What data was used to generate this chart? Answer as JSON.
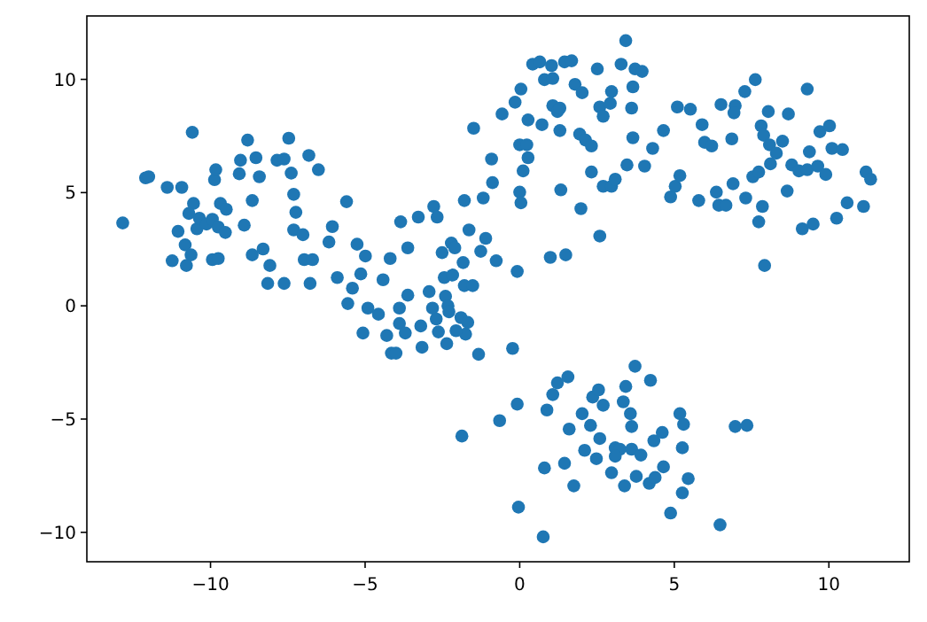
{
  "chart_data": {
    "type": "scatter",
    "color": "#1f77b4",
    "marker": "circle",
    "xlim": [
      -14.0,
      12.6
    ],
    "ylim": [
      -11.3,
      12.8
    ],
    "xticks": [
      {
        "value": -10,
        "label": "−10"
      },
      {
        "value": -5,
        "label": "−5"
      },
      0,
      5,
      10
    ],
    "yticks": [
      {
        "value": -10,
        "label": "−10"
      },
      {
        "value": -5,
        "label": "−5"
      },
      0,
      5,
      10
    ],
    "x": [
      -12.84,
      -12.1,
      -12.0,
      -11.4,
      -10.93,
      -10.59,
      -11.05,
      -11.24,
      -10.78,
      -10.82,
      -10.63,
      -10.55,
      -10.7,
      -10.44,
      -10.36,
      -10.13,
      -9.94,
      -9.87,
      -9.83,
      -9.68,
      -9.49,
      -9.75,
      -9.52,
      -9.94,
      -9.75,
      -9.07,
      -9.03,
      -8.8,
      -8.53,
      -8.42,
      -8.65,
      -8.91,
      -8.65,
      -8.3,
      -8.08,
      -8.15,
      -7.62,
      -7.85,
      -7.62,
      -7.47,
      -7.39,
      -7.31,
      -7.24,
      -7.31,
      -7.01,
      -6.97,
      -6.7,
      -6.78,
      -6.82,
      -6.51,
      -6.17,
      -6.06,
      -5.9,
      -5.6,
      -5.56,
      -5.41,
      -5.26,
      -5.14,
      -4.99,
      -4.91,
      -5.07,
      -4.57,
      -4.42,
      -4.3,
      -4.19,
      -4.15,
      -4.0,
      -3.89,
      -3.85,
      -3.89,
      -3.7,
      -3.62,
      -3.62,
      -3.28,
      -3.2,
      -3.16,
      -2.93,
      -2.82,
      -2.78,
      -2.67,
      -2.7,
      -2.63,
      -2.51,
      -2.44,
      -2.4,
      -2.32,
      -2.29,
      -2.36,
      -2.21,
      -2.17,
      -2.1,
      -1.9,
      -1.83,
      -1.79,
      -1.79,
      -1.75,
      -1.68,
      -2.06,
      -1.64,
      -1.52,
      -1.49,
      -1.33,
      -1.26,
      -1.1,
      -1.18,
      -0.91,
      -0.88,
      -0.76,
      -0.57,
      -0.65,
      -0.23,
      -0.15,
      -0.08,
      0.04,
      -0.08,
      -0.04,
      0,
      0.04,
      0,
      0.23,
      0.11,
      0.27,
      0.27,
      0.42,
      0.65,
      0.72,
      0.8,
      0.99,
      1.03,
      1.07,
      1.07,
      1.22,
      1.3,
      1.3,
      1.33,
      1.49,
      1.45,
      1.68,
      1.79,
      2.02,
      1.94,
      2.13,
      2.32,
      1.98,
      2.32,
      2.51,
      2.59,
      2.7,
      2.93,
      2.97,
      2.59,
      2.7,
      2.97,
      3.09,
      3.28,
      3.43,
      3.47,
      3.62,
      3.66,
      3.73,
      3.96,
      3.66,
      4.04,
      4.3,
      4.65,
      4.88,
      5.03,
      5.18,
      5.1,
      5.52,
      5.79,
      5.9,
      5.98,
      6.21,
      6.36,
      6.44,
      6.67,
      6.51,
      6.86,
      6.9,
      6.97,
      6.93,
      7.28,
      7.31,
      7.62,
      7.54,
      7.73,
      7.73,
      7.85,
      7.81,
      7.89,
      7.92,
      8.04,
      8.08,
      8.11,
      8.3,
      8.5,
      8.69,
      8.65,
      8.8,
      9.03,
      9.14,
      9.3,
      9.37,
      9.3,
      9.49,
      9.64,
      9.71,
      9.9,
      10.02,
      10.1,
      10.25,
      10.44,
      10.59,
      11.12,
      11.2,
      11.35,
      -1.87,
      0.8,
      0.76,
      0.88,
      1.07,
      1.22,
      1.56,
      1.45,
      1.6,
      1.75,
      2.02,
      2.1,
      2.29,
      2.36,
      2.48,
      2.55,
      2.59,
      2.7,
      2.97,
      3.09,
      3.24,
      3.43,
      3.39,
      3.58,
      3.62,
      3.73,
      3.62,
      3.77,
      3.92,
      4.19,
      4.23,
      4.34,
      4.38,
      4.61,
      4.65,
      4.88,
      5.18,
      5.3,
      5.26,
      5.26,
      5.45,
      6.48,
      6.97,
      7.35,
      3.35,
      3.09
    ],
    "values": [
      3.66,
      5.65,
      5.7,
      5.23,
      5.23,
      7.66,
      3.29,
      1.99,
      1.78,
      2.69,
      2.25,
      4.52,
      4.08,
      3.4,
      3.87,
      3.61,
      3.82,
      5.57,
      6.01,
      4.52,
      4.26,
      3.48,
      3.24,
      2.04,
      2.09,
      5.83,
      6.43,
      7.32,
      6.54,
      5.7,
      4.65,
      3.56,
      2.25,
      2.51,
      1.78,
      0.99,
      0.99,
      6.43,
      6.48,
      7.4,
      5.86,
      4.92,
      4.13,
      3.35,
      3.14,
      2.04,
      2.04,
      0.99,
      6.64,
      6.01,
      2.82,
      3.5,
      1.25,
      4.6,
      0.1,
      0.78,
      2.72,
      1.41,
      2.2,
      -0.1,
      -1.2,
      -0.37,
      1.15,
      -1.31,
      2.09,
      -2.09,
      -2.09,
      -0.1,
      3.71,
      -0.78,
      -1.2,
      2.56,
      0.47,
      3.92,
      -0.89,
      -1.83,
      0.63,
      -0.1,
      4.39,
      3.92,
      -0.58,
      -1.15,
      2.35,
      1.25,
      0.42,
      0.0,
      -0.26,
      -1.67,
      2.77,
      1.36,
      2.56,
      -0.52,
      1.91,
      4.65,
      0.89,
      -1.25,
      -0.73,
      -1.1,
      3.35,
      0.89,
      7.84,
      -2.14,
      2.41,
      2.98,
      4.76,
      6.48,
      5.44,
      1.99,
      8.47,
      -5.07,
      -1.88,
      8.99,
      1.52,
      9.57,
      -4.34,
      -8.89,
      5.02,
      4.55,
      7.11,
      7.11,
      5.96,
      6.54,
      8.21,
      10.67,
      10.77,
      8.0,
      9.99,
      2.14,
      10.61,
      10.04,
      8.84,
      8.58,
      8.73,
      7.74,
      5.12,
      2.25,
      10.77,
      10.82,
      9.78,
      9.41,
      7.58,
      7.32,
      7.06,
      4.29,
      5.91,
      10.46,
      8.78,
      8.37,
      8.94,
      9.46,
      3.08,
      5.28,
      5.28,
      5.59,
      10.67,
      11.71,
      6.22,
      8.73,
      9.67,
      10.46,
      10.35,
      7.42,
      6.17,
      6.95,
      7.74,
      4.81,
      5.28,
      5.75,
      8.78,
      8.68,
      4.65,
      8.0,
      7.22,
      7.06,
      5.02,
      4.44,
      4.44,
      8.89,
      7.37,
      5.39,
      8.84,
      8.52,
      9.46,
      4.76,
      9.99,
      5.7,
      5.91,
      3.71,
      4.39,
      7.95,
      7.53,
      1.78,
      8.58,
      7.11,
      6.27,
      6.74,
      7.27,
      8.47,
      5.07,
      6.22,
      5.96,
      3.4,
      9.57,
      6.8,
      6.01,
      3.61,
      6.17,
      7.69,
      5.8,
      7.95,
      6.95,
      3.87,
      6.9,
      4.55,
      4.39,
      5.91,
      5.59,
      -5.75,
      -7.16,
      -10.2,
      -4.6,
      -3.92,
      -3.4,
      -3.14,
      -6.95,
      -5.44,
      -7.95,
      -4.76,
      -6.38,
      -5.28,
      -4.03,
      -6.75,
      -3.71,
      -5.86,
      -4.39,
      -7.37,
      -6.27,
      -6.33,
      -3.56,
      -7.95,
      -4.76,
      -5.33,
      -2.67,
      -6.33,
      -7.53,
      -6.59,
      -7.84,
      -3.29,
      -5.96,
      -7.58,
      -5.59,
      -7.11,
      -9.15,
      -4.76,
      -5.23,
      -6.27,
      -8.26,
      -7.63,
      -9.67,
      -5.33,
      -5.28,
      -4.24,
      -6.64
    ]
  }
}
